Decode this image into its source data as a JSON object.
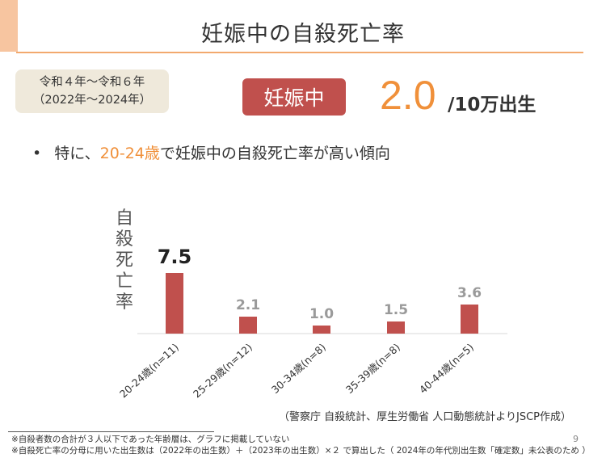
{
  "slide": {
    "title": "妊娠中の自殺死亡率",
    "period_line1": "令和４年～令和６年",
    "period_line2": "（2022年～2024年）",
    "badge": "妊娠中",
    "rate_value": "2.0",
    "rate_unit": "/10万出生",
    "bullet_dot": "•",
    "bullet_highlight": "20-24歳",
    "bullet_rest": "で妊娠中の自殺死亡率が高い傾向",
    "bullet_prefix": "特に、",
    "source": "（警察庁 自殺統計、厚生労働省 人口動態統計よりJSCP作成）",
    "note1": "※自殺者数の合計が３人以下であった年齢層は、グラフに掲載していない",
    "note2": "※自殺死亡率の分母に用いた出生数は（2022年の出生数）＋（2023年の出生数）×２ で算出した（ 2024年の年代別出生数「確定数」未公表のため ）",
    "page_number": "9",
    "colors": {
      "bar": "#c0504d",
      "accent": "#f0903a",
      "badge": "#c0504d"
    }
  },
  "chart_data": {
    "type": "bar",
    "ylabel": "自殺死亡率",
    "categories": [
      "20-24歳(n=11)",
      "25-29歳(n=12)",
      "30-34歳(n=8)",
      "35-39歳(n=8)",
      "40-44歳(n=5)"
    ],
    "values": [
      7.5,
      2.1,
      1.0,
      1.5,
      3.6
    ],
    "value_labels": [
      "7.5",
      "2.1",
      "1.0",
      "1.5",
      "3.6"
    ],
    "ylim": [
      0,
      10
    ],
    "grid": false,
    "legend": "none"
  }
}
